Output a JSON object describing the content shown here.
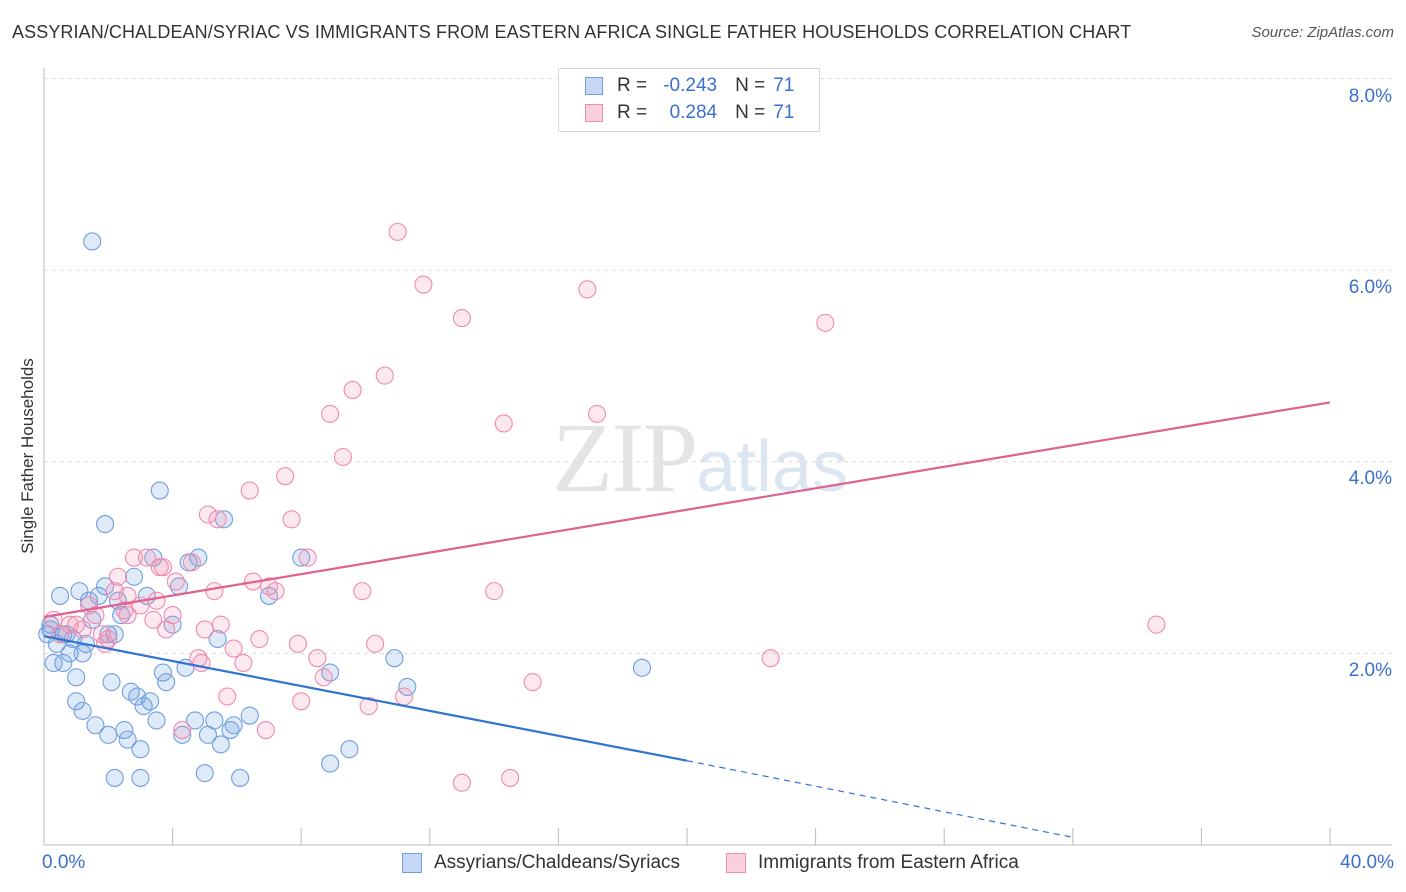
{
  "title": "ASSYRIAN/CHALDEAN/SYRIAC VS IMMIGRANTS FROM EASTERN AFRICA SINGLE FATHER HOUSEHOLDS CORRELATION CHART",
  "source": "Source: ZipAtlas.com",
  "watermark": {
    "zip": "ZIP",
    "atlas": "atlas"
  },
  "legend": {
    "r_label": "R =",
    "n_label": "N =",
    "series1": {
      "r": "-0.243",
      "n": "71"
    },
    "series2": {
      "r": "0.284",
      "n": "71"
    }
  },
  "chart_data": {
    "type": "scatter",
    "title": "ASSYRIAN/CHALDEAN/SYRIAC VS IMMIGRANTS FROM EASTERN AFRICA SINGLE FATHER HOUSEHOLDS CORRELATION CHART",
    "xlabel": "",
    "ylabel": "Single Father Households",
    "xlim": [
      0,
      40
    ],
    "ylim": [
      0,
      8
    ],
    "x_tick_labels": [
      "0.0%",
      "40.0%"
    ],
    "y_ticks": [
      2,
      4,
      6,
      8
    ],
    "y_tick_labels": [
      "2.0%",
      "4.0%",
      "6.0%",
      "8.0%"
    ],
    "grid": true,
    "legend_position": "bottom",
    "series": [
      {
        "name": "Assyrians/Chaldeans/Syriacs",
        "color": "#6f9fe0",
        "line_color": "#2f74d0",
        "trend": {
          "x": [
            0,
            20
          ],
          "y": [
            2.18,
            0.88
          ],
          "dashed_to_x": 32,
          "dashed_y": 0.08
        },
        "points": [
          [
            0.1,
            2.2
          ],
          [
            0.2,
            2.3
          ],
          [
            0.3,
            1.9
          ],
          [
            0.4,
            2.1
          ],
          [
            0.5,
            2.6
          ],
          [
            0.6,
            1.9
          ],
          [
            0.7,
            2.2
          ],
          [
            0.8,
            2.0
          ],
          [
            0.9,
            2.15
          ],
          [
            1.0,
            1.75
          ],
          [
            1.0,
            1.5
          ],
          [
            1.1,
            2.65
          ],
          [
            1.2,
            1.4
          ],
          [
            1.3,
            2.1
          ],
          [
            1.4,
            2.55
          ],
          [
            1.5,
            2.35
          ],
          [
            1.6,
            1.25
          ],
          [
            1.7,
            2.6
          ],
          [
            1.9,
            2.7
          ],
          [
            2.0,
            2.2
          ],
          [
            2.1,
            1.7
          ],
          [
            1.9,
            3.35
          ],
          [
            2.2,
            2.2
          ],
          [
            2.3,
            2.55
          ],
          [
            2.4,
            2.4
          ],
          [
            2.5,
            1.2
          ],
          [
            2.6,
            1.1
          ],
          [
            2.7,
            1.6
          ],
          [
            2.8,
            2.8
          ],
          [
            2.9,
            1.55
          ],
          [
            3.0,
            1.0
          ],
          [
            3.1,
            1.45
          ],
          [
            3.2,
            2.6
          ],
          [
            3.3,
            1.5
          ],
          [
            3.5,
            1.3
          ],
          [
            3.6,
            3.7
          ],
          [
            3.7,
            1.8
          ],
          [
            3.8,
            1.7
          ],
          [
            4.0,
            2.3
          ],
          [
            4.2,
            2.7
          ],
          [
            4.3,
            1.15
          ],
          [
            4.4,
            1.85
          ],
          [
            4.5,
            2.95
          ],
          [
            4.7,
            1.3
          ],
          [
            4.8,
            3.0
          ],
          [
            5.0,
            0.75
          ],
          [
            5.1,
            1.15
          ],
          [
            5.3,
            1.3
          ],
          [
            5.4,
            2.15
          ],
          [
            5.5,
            1.05
          ],
          [
            5.6,
            3.4
          ],
          [
            5.8,
            1.2
          ],
          [
            5.9,
            1.25
          ],
          [
            6.1,
            0.7
          ],
          [
            6.4,
            1.35
          ],
          [
            7.0,
            2.6
          ],
          [
            8.0,
            3.0
          ],
          [
            8.9,
            1.8
          ],
          [
            8.9,
            0.85
          ],
          [
            9.5,
            1.0
          ],
          [
            10.9,
            1.95
          ],
          [
            11.3,
            1.65
          ],
          [
            18.6,
            1.85
          ],
          [
            1.5,
            6.3
          ],
          [
            2.2,
            0.7
          ],
          [
            3.0,
            0.7
          ],
          [
            0.2,
            2.25
          ],
          [
            0.6,
            2.2
          ],
          [
            1.2,
            2.0
          ],
          [
            2.0,
            1.15
          ],
          [
            3.4,
            3.0
          ]
        ]
      },
      {
        "name": "Immigrants from Eastern Africa",
        "color": "#f08ab0",
        "line_color": "#e0608e",
        "trend": {
          "x": [
            0,
            40
          ],
          "y": [
            2.38,
            4.62
          ]
        },
        "points": [
          [
            0.3,
            2.35
          ],
          [
            0.5,
            2.2
          ],
          [
            0.8,
            2.3
          ],
          [
            1.0,
            2.3
          ],
          [
            1.2,
            2.25
          ],
          [
            1.4,
            2.5
          ],
          [
            1.6,
            2.4
          ],
          [
            1.8,
            2.2
          ],
          [
            2.0,
            2.15
          ],
          [
            2.2,
            2.65
          ],
          [
            2.3,
            2.8
          ],
          [
            2.5,
            2.45
          ],
          [
            2.6,
            2.6
          ],
          [
            2.6,
            2.4
          ],
          [
            2.8,
            3.0
          ],
          [
            3.0,
            2.5
          ],
          [
            3.2,
            3.0
          ],
          [
            3.4,
            2.35
          ],
          [
            3.5,
            2.55
          ],
          [
            3.6,
            2.9
          ],
          [
            3.8,
            2.25
          ],
          [
            4.0,
            2.4
          ],
          [
            4.1,
            2.75
          ],
          [
            4.3,
            1.2
          ],
          [
            4.6,
            2.95
          ],
          [
            4.8,
            1.95
          ],
          [
            5.0,
            2.25
          ],
          [
            5.1,
            3.45
          ],
          [
            5.3,
            2.65
          ],
          [
            5.4,
            3.4
          ],
          [
            5.5,
            2.3
          ],
          [
            5.7,
            1.55
          ],
          [
            5.9,
            2.05
          ],
          [
            6.2,
            1.9
          ],
          [
            6.4,
            3.7
          ],
          [
            6.5,
            2.75
          ],
          [
            6.7,
            2.15
          ],
          [
            6.9,
            1.2
          ],
          [
            7.0,
            2.7
          ],
          [
            7.2,
            2.65
          ],
          [
            7.5,
            3.85
          ],
          [
            7.7,
            3.4
          ],
          [
            7.9,
            2.1
          ],
          [
            8.0,
            1.5
          ],
          [
            8.2,
            3.0
          ],
          [
            8.5,
            1.95
          ],
          [
            8.7,
            1.75
          ],
          [
            8.9,
            4.5
          ],
          [
            9.3,
            4.05
          ],
          [
            9.6,
            4.75
          ],
          [
            9.9,
            2.65
          ],
          [
            10.1,
            1.45
          ],
          [
            10.3,
            2.1
          ],
          [
            10.6,
            4.9
          ],
          [
            11.0,
            6.4
          ],
          [
            11.2,
            1.55
          ],
          [
            11.8,
            5.85
          ],
          [
            13.0,
            5.5
          ],
          [
            13.0,
            0.65
          ],
          [
            14.0,
            2.65
          ],
          [
            14.3,
            4.4
          ],
          [
            14.5,
            0.7
          ],
          [
            15.2,
            1.7
          ],
          [
            16.9,
            5.8
          ],
          [
            17.2,
            4.5
          ],
          [
            22.6,
            1.95
          ],
          [
            24.3,
            5.45
          ],
          [
            34.6,
            2.3
          ],
          [
            1.9,
            2.1
          ],
          [
            3.7,
            2.9
          ],
          [
            4.9,
            1.9
          ]
        ]
      }
    ]
  },
  "bottom_legend": {
    "series1": "Assyrians/Chaldeans/Syriacs",
    "series2": "Immigrants from Eastern Africa"
  }
}
